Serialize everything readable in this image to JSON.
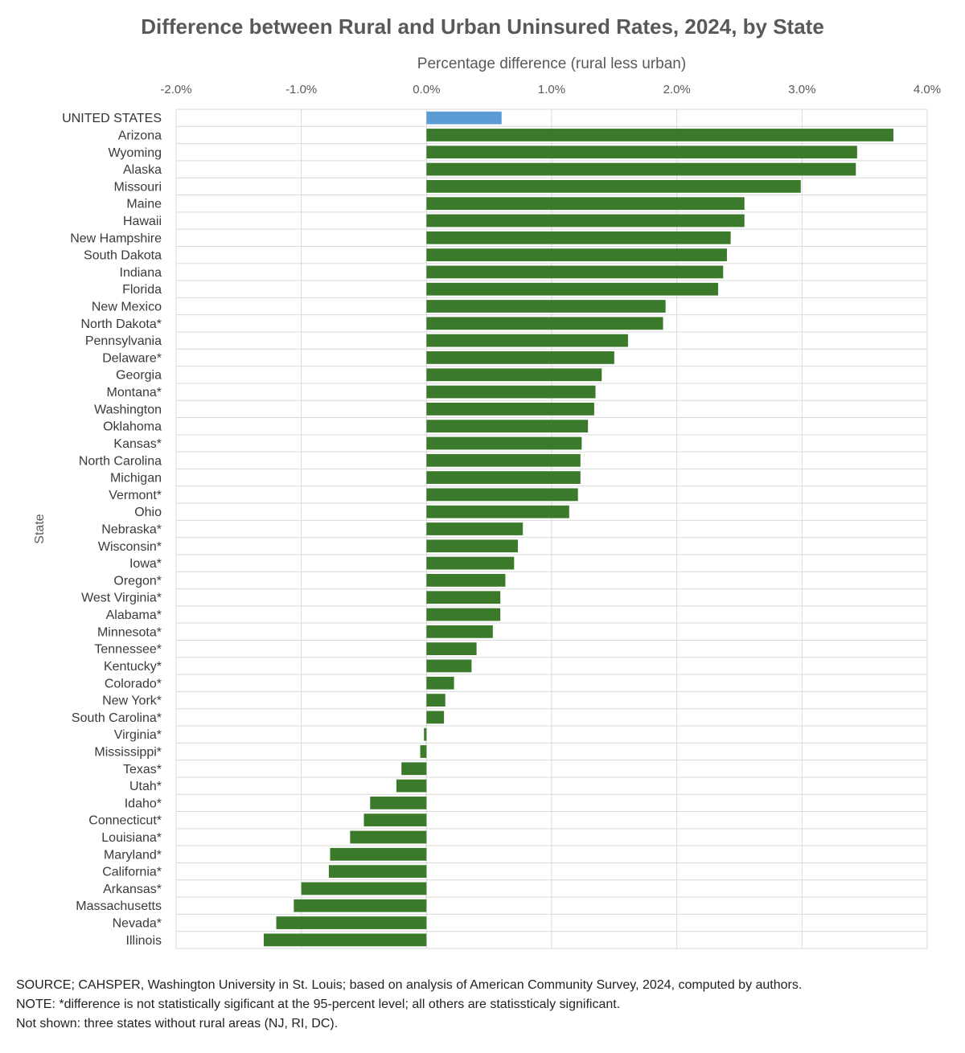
{
  "chart_data": {
    "type": "bar",
    "orientation": "horizontal",
    "title": "Difference between Rural and Urban Uninsured Rates, 2024, by State",
    "xlabel": "Percentage difference (rural less urban)",
    "ylabel": "State",
    "xlim": [
      -2.0,
      4.0
    ],
    "xticks": [
      -2.0,
      -1.0,
      0.0,
      1.0,
      2.0,
      3.0,
      4.0
    ],
    "xtick_labels": [
      "-2.0%",
      "-1.0%",
      "0.0%",
      "1.0%",
      "2.0%",
      "3.0%",
      "4.0%"
    ],
    "x_axis_position": "top",
    "grid": true,
    "colors": {
      "total": "#5b9bd5",
      "state": "#3a7a2a"
    },
    "categories": [
      "UNITED STATES",
      "Arizona",
      "Wyoming",
      "Alaska",
      "Missouri",
      "Maine",
      "Hawaii",
      "New Hampshire",
      "South Dakota",
      "Indiana",
      "Florida",
      "New Mexico",
      "North Dakota*",
      "Pennsylvania",
      "Delaware*",
      "Georgia",
      "Montana*",
      "Washington",
      "Oklahoma",
      "Kansas*",
      "North Carolina",
      "Michigan",
      "Vermont*",
      "Ohio",
      "Nebraska*",
      "Wisconsin*",
      "Iowa*",
      "Oregon*",
      "West Virginia*",
      "Alabama*",
      "Minnesota*",
      "Tennessee*",
      "Kentucky*",
      "Colorado*",
      "New York*",
      "South Carolina*",
      "Virginia*",
      "Mississippi*",
      "Texas*",
      "Utah*",
      "Idaho*",
      "Connecticut*",
      "Louisiana*",
      "Maryland*",
      "California*",
      "Arkansas*",
      "Massachusetts",
      "Nevada*",
      "Illinois"
    ],
    "values": [
      0.6,
      3.73,
      3.44,
      3.43,
      2.99,
      2.54,
      2.54,
      2.43,
      2.4,
      2.37,
      2.33,
      1.91,
      1.89,
      1.61,
      1.5,
      1.4,
      1.35,
      1.34,
      1.29,
      1.24,
      1.23,
      1.23,
      1.21,
      1.14,
      0.77,
      0.73,
      0.7,
      0.63,
      0.59,
      0.59,
      0.53,
      0.4,
      0.36,
      0.22,
      0.15,
      0.14,
      -0.02,
      -0.05,
      -0.2,
      -0.24,
      -0.45,
      -0.5,
      -0.61,
      -0.77,
      -0.78,
      -1.0,
      -1.06,
      -1.2,
      -1.3
    ],
    "source_note": "SOURCE; CAHSPER, Washington University in St. Louis; based on analysis of American Community Survey, 2024, computed by authors.",
    "note": "NOTE: *difference is not statistically sigificant at the 95-percent level; all others are statissticaly significant.",
    "not_shown": "Not shown: three states without rural areas (NJ, RI, DC)."
  }
}
